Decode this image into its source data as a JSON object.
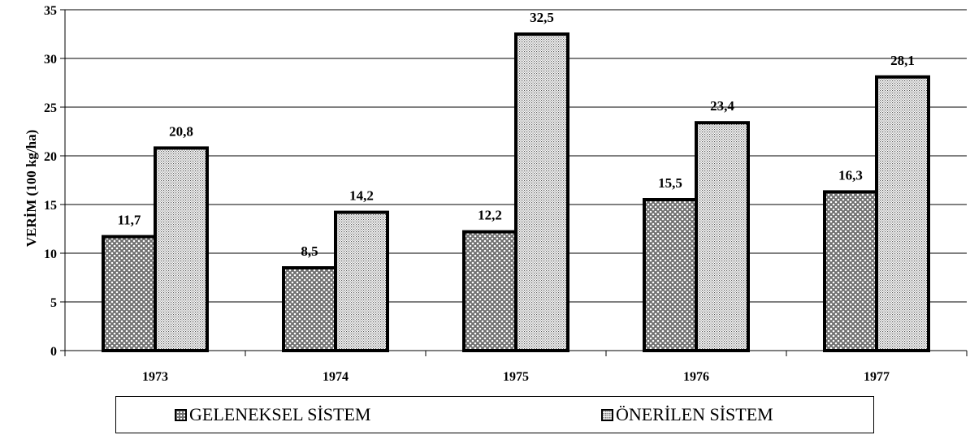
{
  "chart_data": {
    "type": "bar",
    "categories": [
      "1973",
      "1974",
      "1975",
      "1976",
      "1977"
    ],
    "series": [
      {
        "name": "GELENEKSEL SİSTEM",
        "values": [
          11.7,
          8.5,
          12.2,
          15.5,
          16.3
        ],
        "labels": [
          "11,7",
          "8,5",
          "12,2",
          "15,5",
          "16,3"
        ],
        "pattern": "crosshatch"
      },
      {
        "name": "ÖNERİLEN SİSTEM",
        "values": [
          20.8,
          14.2,
          32.5,
          23.4,
          28.1
        ],
        "labels": [
          "20,8",
          "14,2",
          "32,5",
          "23,4",
          "28,1"
        ],
        "pattern": "dotted"
      }
    ],
    "ylabel": "VERİM (100 kg/ha)",
    "xlabel": "",
    "ylim": [
      0,
      35
    ],
    "yticks": [
      0,
      5,
      10,
      15,
      20,
      25,
      30,
      35
    ],
    "grid": true,
    "legend_position": "bottom"
  },
  "colors": {
    "bar_fill": "#8a8a8a",
    "bar_stroke": "#000000",
    "grid": "#000000"
  }
}
